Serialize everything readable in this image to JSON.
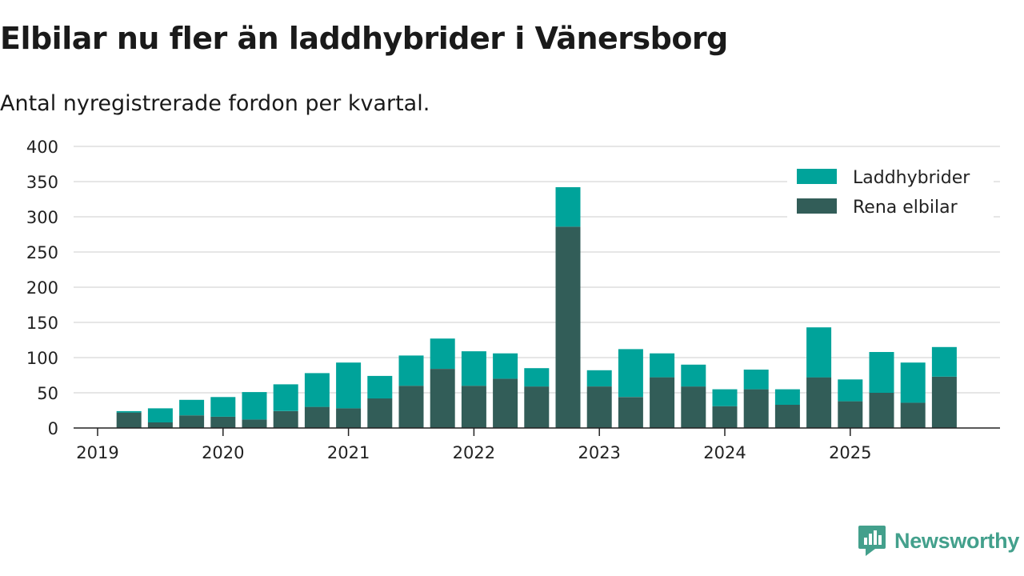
{
  "header": {
    "title": "Elbilar nu fler än laddhybrider i Vänersborg",
    "subtitle": "Antal nyregistrerade fordon per kvartal."
  },
  "branding": {
    "name": "Newsworthy",
    "color": "#43a08c"
  },
  "chart_data": {
    "type": "bar",
    "stacked": true,
    "title": "Elbilar nu fler än laddhybrider i Vänersborg",
    "subtitle": "Antal nyregistrerade fordon per kvartal.",
    "xlabel": "",
    "ylabel": "",
    "ylim": [
      0,
      400
    ],
    "y_ticks": [
      0,
      50,
      100,
      150,
      200,
      250,
      300,
      350,
      400
    ],
    "x_tick_labels": [
      "2019",
      "2020",
      "2021",
      "2022",
      "2023",
      "2024",
      "2025"
    ],
    "grid": true,
    "legend_position": "top-right",
    "categories": [
      "2019 Q1",
      "2019 Q2",
      "2019 Q3",
      "2019 Q4",
      "2020 Q1",
      "2020 Q2",
      "2020 Q3",
      "2020 Q4",
      "2021 Q1",
      "2021 Q2",
      "2021 Q3",
      "2021 Q4",
      "2022 Q1",
      "2022 Q2",
      "2022 Q3",
      "2022 Q4",
      "2023 Q1",
      "2023 Q2",
      "2023 Q3",
      "2023 Q4",
      "2024 Q1",
      "2024 Q2",
      "2024 Q3",
      "2024 Q4",
      "2025 Q1",
      "2025 Q2",
      "2025 Q3",
      "2025 Q4"
    ],
    "series": [
      {
        "name": "Rena elbilar",
        "color": "#325d58",
        "values": [
          0,
          22,
          8,
          18,
          16,
          12,
          24,
          30,
          28,
          42,
          60,
          84,
          60,
          70,
          59,
          286,
          59,
          44,
          72,
          59,
          31,
          55,
          33,
          72,
          38,
          50,
          36,
          73
        ]
      },
      {
        "name": "Laddhybrider",
        "color": "#00a39a",
        "values": [
          0,
          2,
          20,
          22,
          28,
          39,
          38,
          48,
          65,
          32,
          43,
          43,
          49,
          36,
          26,
          56,
          23,
          68,
          34,
          31,
          24,
          28,
          22,
          71,
          31,
          58,
          57,
          42
        ]
      }
    ]
  }
}
